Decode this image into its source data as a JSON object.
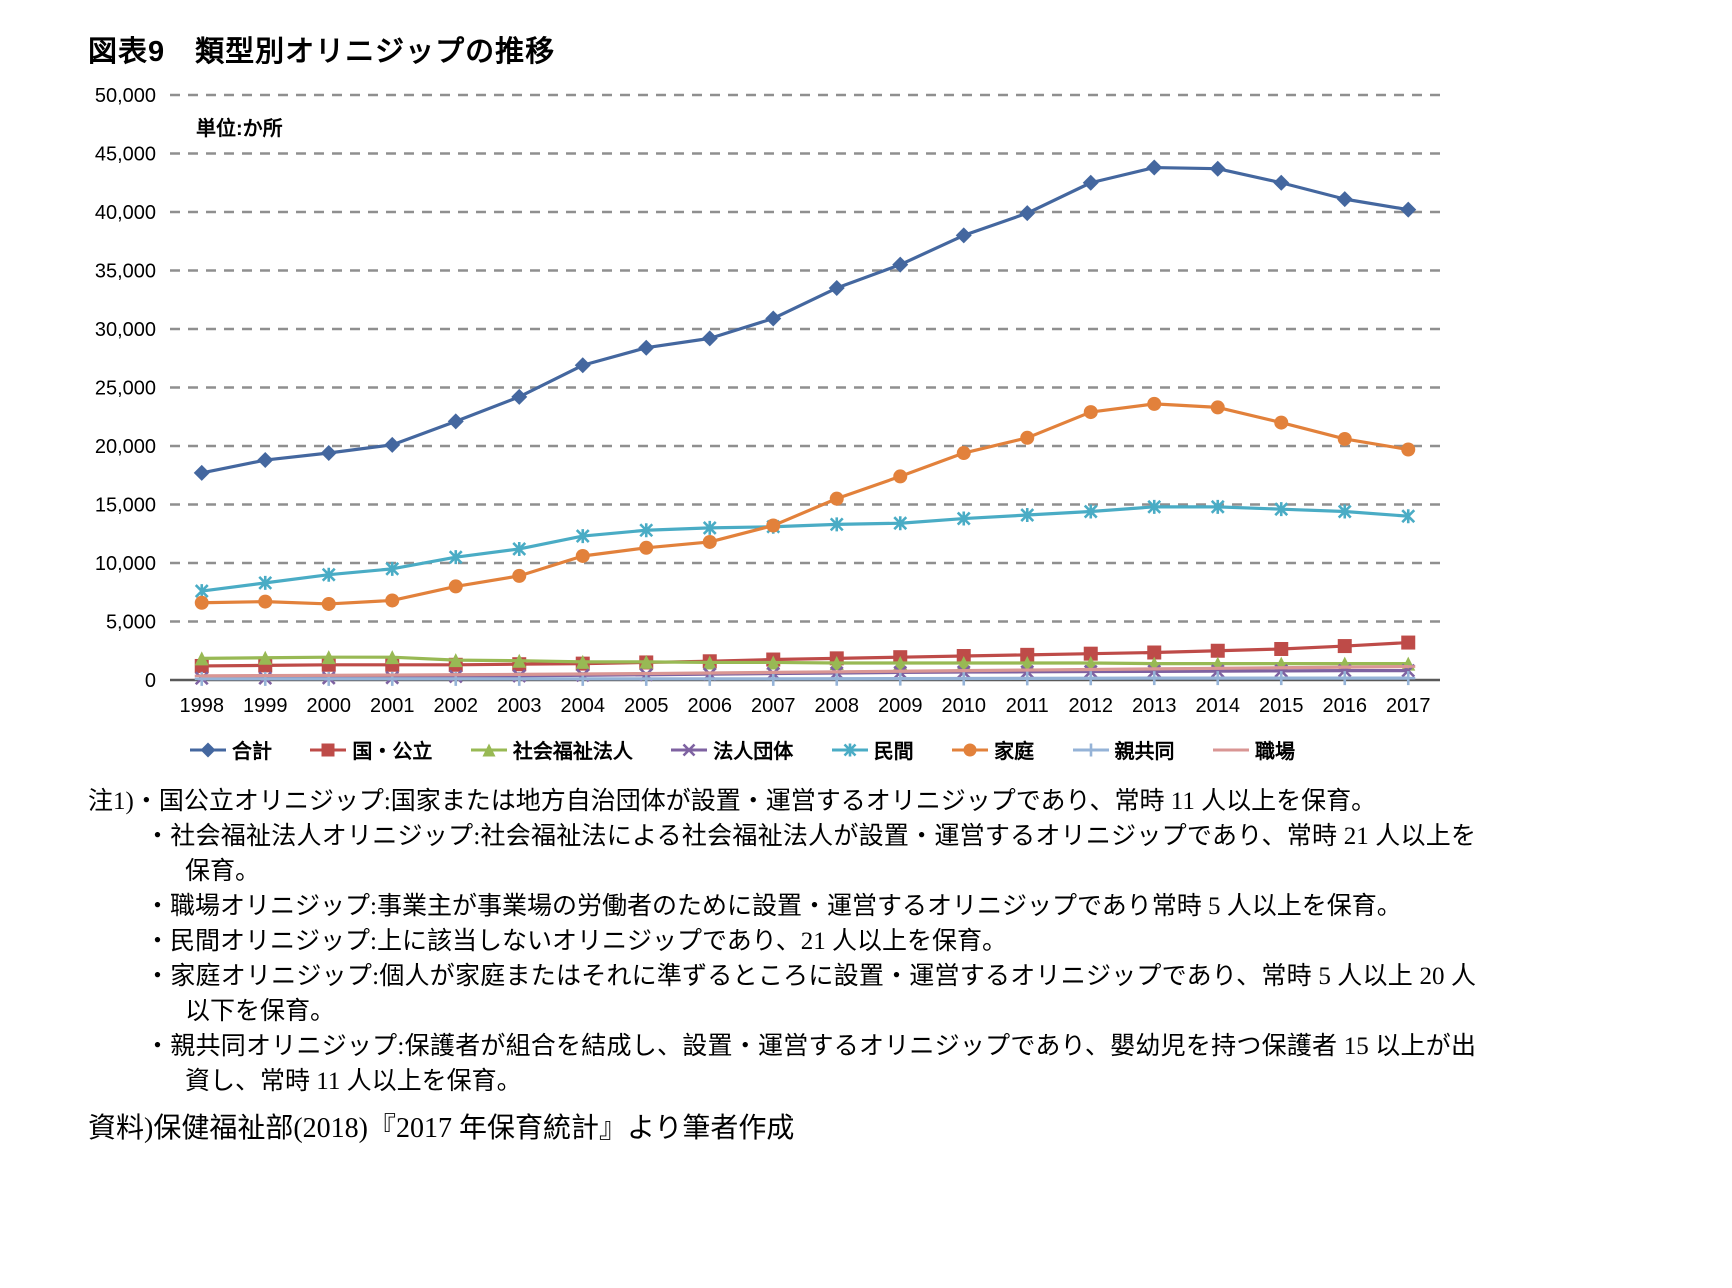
{
  "title": "図表9　類型別オリニジップの推移",
  "unit_label": "単位:か所",
  "chart_data": {
    "type": "line",
    "title": "類型別オリニジップの推移",
    "xlabel": "",
    "ylabel": "単位:か所",
    "x": [
      1998,
      1999,
      2000,
      2001,
      2002,
      2003,
      2004,
      2005,
      2006,
      2007,
      2008,
      2009,
      2010,
      2011,
      2012,
      2013,
      2014,
      2015,
      2016,
      2017
    ],
    "ylim": [
      0,
      50000
    ],
    "ytick_step": 5000,
    "grid": "dashed-horizontal",
    "legend_position": "bottom",
    "series": [
      {
        "name": "合計",
        "color": "#44679F",
        "marker": "diamond",
        "values": [
          17700,
          18800,
          19400,
          20100,
          22100,
          24200,
          26900,
          28400,
          29200,
          30900,
          33500,
          35500,
          38000,
          39900,
          42500,
          43800,
          43700,
          42500,
          41100,
          40200
        ]
      },
      {
        "name": "国・公立",
        "color": "#BE4B48",
        "marker": "square",
        "values": [
          1200,
          1250,
          1300,
          1300,
          1300,
          1350,
          1400,
          1500,
          1600,
          1750,
          1850,
          1950,
          2050,
          2150,
          2250,
          2350,
          2500,
          2650,
          2900,
          3200
        ]
      },
      {
        "name": "社会福祉法人",
        "color": "#98B954",
        "marker": "triangle",
        "values": [
          1850,
          1900,
          1950,
          1950,
          1700,
          1650,
          1550,
          1550,
          1500,
          1500,
          1450,
          1450,
          1450,
          1450,
          1450,
          1400,
          1400,
          1400,
          1400,
          1400
        ]
      },
      {
        "name": "法人団体",
        "color": "#7E62A1",
        "marker": "x",
        "values": [
          150,
          160,
          180,
          200,
          300,
          350,
          400,
          450,
          500,
          550,
          600,
          650,
          680,
          700,
          720,
          740,
          760,
          780,
          800,
          800
        ]
      },
      {
        "name": "民間",
        "color": "#4AACC5",
        "marker": "star",
        "values": [
          7600,
          8300,
          9000,
          9500,
          10500,
          11200,
          12300,
          12800,
          13000,
          13100,
          13300,
          13400,
          13800,
          14100,
          14400,
          14800,
          14800,
          14600,
          14400,
          14000
        ]
      },
      {
        "name": "家庭",
        "color": "#E2813B",
        "marker": "circle",
        "values": [
          6600,
          6700,
          6500,
          6800,
          8000,
          8900,
          10600,
          11300,
          11800,
          13200,
          15500,
          17400,
          19400,
          20700,
          22900,
          23600,
          23300,
          22000,
          20600,
          19700
        ]
      },
      {
        "name": "親共同",
        "color": "#95B3D7",
        "marker": "plus",
        "values": [
          100,
          100,
          100,
          100,
          100,
          100,
          100,
          100,
          100,
          100,
          110,
          120,
          130,
          140,
          150,
          160,
          160,
          160,
          160,
          160
        ]
      },
      {
        "name": "職場",
        "color": "#D99694",
        "marker": "dash",
        "values": [
          350,
          380,
          400,
          420,
          450,
          480,
          510,
          550,
          600,
          650,
          700,
          750,
          800,
          850,
          900,
          950,
          1000,
          1050,
          1100,
          1150
        ]
      }
    ]
  },
  "notes": [
    {
      "style": "first",
      "text": "注1)・国公立オリニジップ:国家または地方自治団体が設置・運営するオリニジップであり、常時 11 人以上を保育。"
    },
    {
      "style": "bullet",
      "text": "・社会福祉法人オリニジップ:社会福祉法による社会福祉法人が設置・運営するオリニジップであり、常時 21 人以上を保育。"
    },
    {
      "style": "bullet",
      "text": "・職場オリニジップ:事業主が事業場の労働者のために設置・運営するオリニジップであり常時 5 人以上を保育。"
    },
    {
      "style": "bullet",
      "text": "・民間オリニジップ:上に該当しないオリニジップであり、21 人以上を保育。"
    },
    {
      "style": "bullet",
      "text": "・家庭オリニジップ:個人が家庭またはそれに準ずるところに設置・運営するオリニジップであり、常時 5 人以上 20 人以下を保育。"
    },
    {
      "style": "bullet",
      "text": "・親共同オリニジップ:保護者が組合を結成し、設置・運営するオリニジップであり、嬰幼児を持つ保護者 15 以上が出資し、常時 11 人以上を保育。"
    }
  ],
  "source": "資料)保健福祉部(2018)『2017 年保育統計』より筆者作成"
}
